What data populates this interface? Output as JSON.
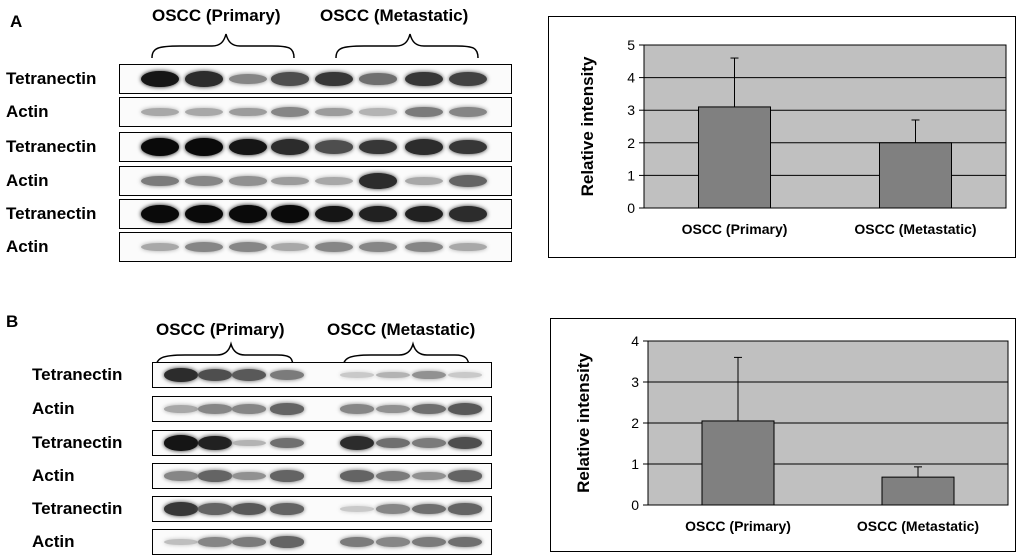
{
  "panel_a": {
    "letter": "A",
    "group_primary": "OSCC (Primary)",
    "group_metastatic": "OSCC (Metastatic)",
    "rows": [
      {
        "label": "Tetranectin",
        "intensities": [
          0.95,
          0.85,
          0.45,
          0.7,
          0.8,
          0.55,
          0.8,
          0.75
        ]
      },
      {
        "label": "Actin",
        "intensities": [
          0.3,
          0.3,
          0.35,
          0.45,
          0.35,
          0.25,
          0.5,
          0.45
        ]
      },
      {
        "label": "Tetranectin",
        "intensities": [
          1.0,
          1.0,
          0.95,
          0.85,
          0.7,
          0.8,
          0.85,
          0.8
        ]
      },
      {
        "label": "Actin",
        "intensities": [
          0.5,
          0.45,
          0.4,
          0.35,
          0.3,
          0.85,
          0.3,
          0.6
        ]
      },
      {
        "label": "Tetranectin",
        "intensities": [
          1.0,
          1.0,
          1.0,
          1.0,
          0.95,
          0.9,
          0.9,
          0.85
        ]
      },
      {
        "label": "Actin",
        "intensities": [
          0.3,
          0.45,
          0.45,
          0.3,
          0.45,
          0.45,
          0.45,
          0.3
        ]
      }
    ]
  },
  "panel_b": {
    "letter": "B",
    "group_primary": "OSCC (Primary)",
    "group_metastatic": "OSCC (Metastatic)",
    "rows": [
      {
        "label": "Tetranectin",
        "intensities": [
          0.85,
          0.7,
          0.65,
          0.5,
          0.15,
          0.25,
          0.4,
          0.15
        ]
      },
      {
        "label": "Actin",
        "intensities": [
          0.3,
          0.45,
          0.45,
          0.6,
          0.45,
          0.4,
          0.55,
          0.65
        ]
      },
      {
        "label": "Tetranectin",
        "intensities": [
          0.95,
          0.9,
          0.25,
          0.55,
          0.85,
          0.55,
          0.5,
          0.7
        ]
      },
      {
        "label": "Actin",
        "intensities": [
          0.45,
          0.6,
          0.4,
          0.6,
          0.6,
          0.5,
          0.4,
          0.6
        ]
      },
      {
        "label": "Tetranectin",
        "intensities": [
          0.8,
          0.6,
          0.65,
          0.6,
          0.15,
          0.45,
          0.55,
          0.6
        ]
      },
      {
        "label": "Actin",
        "intensities": [
          0.2,
          0.45,
          0.5,
          0.6,
          0.5,
          0.45,
          0.5,
          0.55
        ]
      }
    ]
  },
  "chart_data": [
    {
      "type": "bar",
      "categories": [
        "OSCC (Primary)",
        "OSCC (Metastatic)"
      ],
      "values": [
        3.1,
        2.0
      ],
      "error_upper": [
        4.6,
        2.7
      ],
      "xlabel": "",
      "ylabel": "Relative intensity",
      "ylim": [
        0,
        5
      ],
      "yticks": [
        "0",
        "1",
        "2",
        "3",
        "4",
        "5"
      ],
      "grid": true,
      "plot_background": "#c0c0c0",
      "bar_color": "#808080"
    },
    {
      "type": "bar",
      "categories": [
        "OSCC (Primary)",
        "OSCC (Metastatic)"
      ],
      "values": [
        2.05,
        0.68
      ],
      "error_upper": [
        3.6,
        0.93
      ],
      "xlabel": "",
      "ylabel": "Relative intensity",
      "ylim": [
        0,
        4
      ],
      "yticks": [
        "0",
        "1",
        "2",
        "3",
        "4"
      ],
      "grid": true,
      "plot_background": "#c0c0c0",
      "bar_color": "#808080"
    }
  ]
}
